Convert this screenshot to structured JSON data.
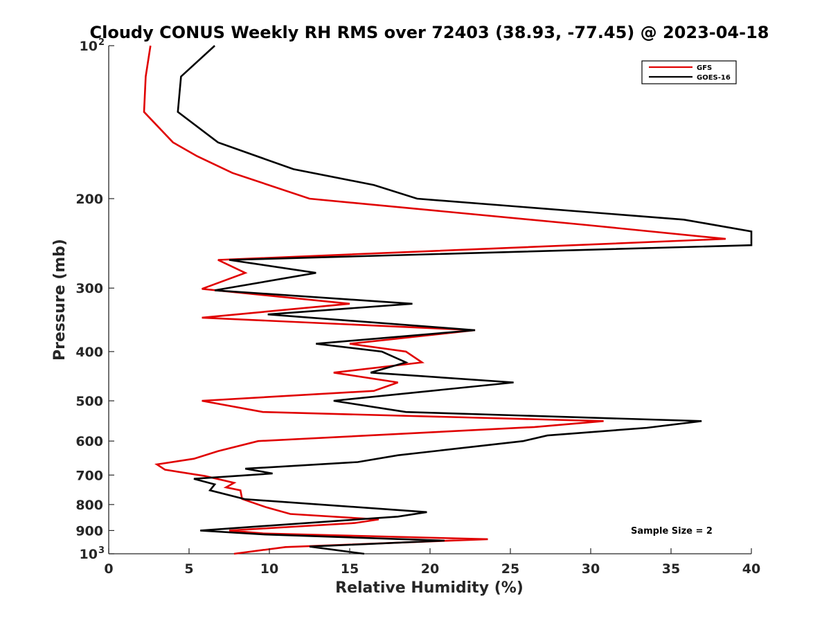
{
  "chart_data": {
    "type": "line",
    "title": "Cloudy CONUS Weekly RH RMS over 72403 (38.93, -77.45) @ 2023-04-18",
    "xlabel": "Relative Humidity (%)",
    "ylabel": "Pressure (mb)",
    "xlim": [
      0,
      40
    ],
    "ylim": [
      100,
      1000
    ],
    "y_scale": "log",
    "y_reversed": true,
    "x_ticks": [
      "0",
      "5",
      "10",
      "15",
      "20",
      "25",
      "30",
      "35",
      "40"
    ],
    "y_ticks": [
      {
        "value": 100,
        "label": "10",
        "exp": "2"
      },
      {
        "value": 200,
        "label": "200"
      },
      {
        "value": 300,
        "label": "300"
      },
      {
        "value": 400,
        "label": "400"
      },
      {
        "value": 500,
        "label": "500"
      },
      {
        "value": 600,
        "label": "600"
      },
      {
        "value": 700,
        "label": "700"
      },
      {
        "value": 800,
        "label": "800"
      },
      {
        "value": 900,
        "label": "900"
      },
      {
        "value": 1000,
        "label": "10",
        "exp": "3"
      }
    ],
    "grid": false,
    "legend_position": "top-right",
    "annotation": "Sample Size = 2",
    "series": [
      {
        "name": "GFS",
        "color": "#e00000",
        "points": [
          [
            2.6,
            100
          ],
          [
            2.3,
            115
          ],
          [
            2.2,
            135
          ],
          [
            4.0,
            155
          ],
          [
            5.5,
            165
          ],
          [
            7.7,
            178
          ],
          [
            12.5,
            200
          ],
          [
            29.5,
            225
          ],
          [
            38.4,
            240
          ],
          [
            6.8,
            264
          ],
          [
            8.5,
            280
          ],
          [
            5.8,
            301
          ],
          [
            15.0,
            322
          ],
          [
            5.8,
            343
          ],
          [
            22.8,
            363
          ],
          [
            15.0,
            386
          ],
          [
            18.5,
            400
          ],
          [
            19.5,
            420
          ],
          [
            14.0,
            440
          ],
          [
            18.0,
            460
          ],
          [
            16.5,
            478
          ],
          [
            5.8,
            500
          ],
          [
            9.6,
            526
          ],
          [
            30.8,
            548
          ],
          [
            26.5,
            563
          ],
          [
            9.3,
            600
          ],
          [
            6.8,
            628
          ],
          [
            5.3,
            650
          ],
          [
            3.0,
            667
          ],
          [
            3.5,
            683
          ],
          [
            6.0,
            703
          ],
          [
            7.8,
            725
          ],
          [
            7.3,
            740
          ],
          [
            8.2,
            750
          ],
          [
            8.3,
            780
          ],
          [
            9.8,
            810
          ],
          [
            11.3,
            835
          ],
          [
            16.8,
            856
          ],
          [
            15.3,
            870
          ],
          [
            7.5,
            900
          ],
          [
            9.6,
            912
          ],
          [
            23.6,
            936
          ],
          [
            11.0,
            970
          ],
          [
            7.8,
            1000
          ]
        ]
      },
      {
        "name": "GOES-16",
        "color": "#000000",
        "points": [
          [
            6.6,
            100
          ],
          [
            4.5,
            115
          ],
          [
            4.3,
            135
          ],
          [
            6.8,
            155
          ],
          [
            11.5,
            175
          ],
          [
            16.5,
            188
          ],
          [
            19.2,
            200
          ],
          [
            35.8,
            220
          ],
          [
            40.0,
            232
          ],
          [
            40.0,
            247
          ],
          [
            7.5,
            264
          ],
          [
            12.9,
            280
          ],
          [
            6.6,
            303
          ],
          [
            18.9,
            322
          ],
          [
            9.9,
            338
          ],
          [
            22.8,
            363
          ],
          [
            12.9,
            386
          ],
          [
            17.0,
            400
          ],
          [
            18.5,
            420
          ],
          [
            16.3,
            440
          ],
          [
            25.2,
            460
          ],
          [
            14.0,
            500
          ],
          [
            18.5,
            526
          ],
          [
            36.9,
            548
          ],
          [
            33.5,
            565
          ],
          [
            27.3,
            585
          ],
          [
            25.8,
            600
          ],
          [
            18.0,
            640
          ],
          [
            15.5,
            660
          ],
          [
            8.5,
            680
          ],
          [
            10.2,
            695
          ],
          [
            5.3,
            712
          ],
          [
            6.6,
            730
          ],
          [
            6.3,
            750
          ],
          [
            8.5,
            781
          ],
          [
            19.8,
            828
          ],
          [
            18.0,
            845
          ],
          [
            5.7,
            900
          ],
          [
            9.6,
            916
          ],
          [
            20.9,
            942
          ],
          [
            12.5,
            968
          ],
          [
            15.9,
            1000
          ]
        ]
      }
    ]
  }
}
